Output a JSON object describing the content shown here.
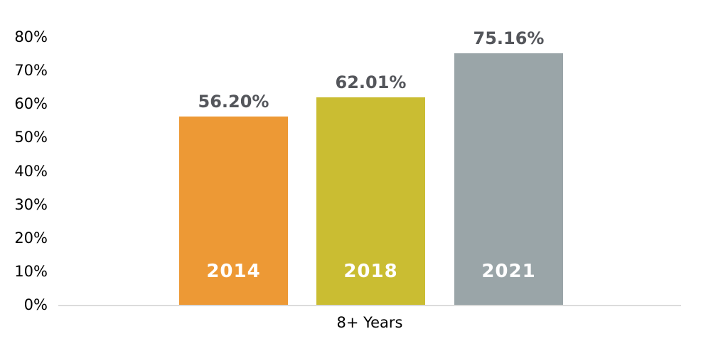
{
  "chart_data": {
    "type": "bar",
    "title": "",
    "xlabel": "8+ Years",
    "ylabel": "",
    "ylim": [
      0,
      80
    ],
    "ytick_values": [
      0,
      10,
      20,
      30,
      40,
      50,
      60,
      70,
      80
    ],
    "yticks": [
      "0%",
      "10%",
      "20%",
      "30%",
      "40%",
      "50%",
      "60%",
      "70%",
      "80%"
    ],
    "grid": false,
    "legend_position": "none",
    "categories": [
      "8+ Years"
    ],
    "series": [
      {
        "name": "2014",
        "value": 56.2,
        "label": "56.20%",
        "color": "#ED9935"
      },
      {
        "name": "2018",
        "value": 62.01,
        "label": "62.01%",
        "color": "#CABD32"
      },
      {
        "name": "2021",
        "value": 75.16,
        "label": "75.16%",
        "color": "#9AA5A8"
      }
    ]
  },
  "colors": {
    "background": "#FFFFFF",
    "axis_line": "#DBDBDB",
    "axis_text": "#000000",
    "value_label_text": "#54565B",
    "bar_year_text": "#FFFFFF"
  }
}
